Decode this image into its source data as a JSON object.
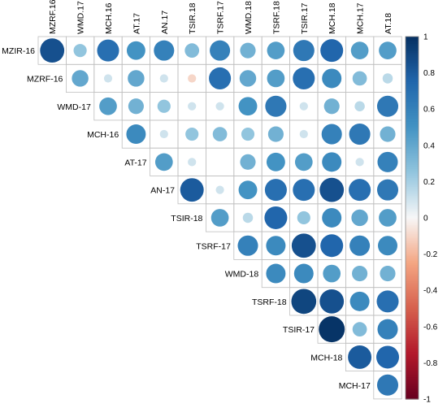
{
  "chart_data": {
    "type": "heatmap",
    "subtype": "correlation-circles-upper-triangle",
    "title": "",
    "xlabel": "",
    "ylabel": "",
    "column_labels": [
      "MZRF.16",
      "WMD.17",
      "MCH.16",
      "AT.17",
      "AN.17",
      "TSIR.18",
      "TSRF.17",
      "WMD.18",
      "TSRF.18",
      "TSIR.17",
      "MCH.18",
      "MCH.17",
      "AT.18"
    ],
    "row_labels": [
      "MZIR-16",
      "MZRF-16",
      "WMD-17",
      "MCH-16",
      "AT-17",
      "AN-17",
      "TSIR-18",
      "TSRF-17",
      "WMD-18",
      "TSRF-18",
      "TSIR-17",
      "MCH-18",
      "MCH-17"
    ],
    "values": [
      [
        0.85,
        0.25,
        0.7,
        0.5,
        0.6,
        0.3,
        0.6,
        0.35,
        0.45,
        0.65,
        0.75,
        0.45,
        0.45
      ],
      [
        null,
        0.4,
        0.1,
        0.4,
        0.1,
        -0.1,
        0.7,
        0.4,
        0.45,
        0.7,
        0.55,
        0.3,
        0.15
      ],
      [
        null,
        null,
        0.45,
        0.35,
        0.25,
        0.1,
        0.1,
        0.5,
        0.65,
        0.1,
        0.35,
        0.15,
        0.65
      ],
      [
        null,
        null,
        null,
        0.55,
        0.1,
        0.25,
        0.3,
        0.25,
        0.35,
        0.1,
        0.6,
        0.65,
        0.35
      ],
      [
        null,
        null,
        null,
        null,
        0.45,
        0.1,
        0.0,
        0.35,
        0.5,
        0.45,
        0.55,
        0.1,
        0.6
      ],
      [
        null,
        null,
        null,
        null,
        null,
        0.8,
        0.1,
        0.5,
        0.7,
        0.7,
        0.85,
        0.7,
        0.65
      ],
      [
        null,
        null,
        null,
        null,
        null,
        null,
        0.45,
        0.15,
        0.75,
        0.25,
        0.55,
        0.4,
        0.45
      ],
      [
        null,
        null,
        null,
        null,
        null,
        null,
        null,
        0.6,
        0.55,
        0.85,
        0.75,
        0.6,
        0.55
      ],
      [
        null,
        null,
        null,
        null,
        null,
        null,
        null,
        null,
        0.55,
        0.55,
        0.45,
        0.35,
        0.35
      ],
      [
        null,
        null,
        null,
        null,
        null,
        null,
        null,
        null,
        null,
        0.9,
        0.85,
        0.55,
        0.7
      ],
      [
        null,
        null,
        null,
        null,
        null,
        null,
        null,
        null,
        null,
        null,
        0.98,
        0.3,
        0.6
      ],
      [
        null,
        null,
        null,
        null,
        null,
        null,
        null,
        null,
        null,
        null,
        null,
        0.8,
        0.75
      ],
      [
        null,
        null,
        null,
        null,
        null,
        null,
        null,
        null,
        null,
        null,
        null,
        null,
        0.65
      ]
    ],
    "color_range": [
      -1,
      1
    ],
    "colorbar_ticks": [
      "1",
      "0.8",
      "0.6",
      "0.4",
      "0.2",
      "0",
      "-0.2",
      "-0.4",
      "-0.6",
      "-0.8",
      "-1"
    ],
    "colorbar_tick_values": [
      1,
      0.8,
      0.6,
      0.4,
      0.2,
      0,
      -0.2,
      -0.4,
      -0.6,
      -0.8,
      -1
    ],
    "colors": {
      "negative_strong": "#67001F",
      "negative_mid": "#D6604D",
      "neutral": "#F7F7F7",
      "positive_mid": "#4393C3",
      "positive_strong": "#053061",
      "grid": "#BFBFBF"
    },
    "legend": "right",
    "grid": true
  }
}
